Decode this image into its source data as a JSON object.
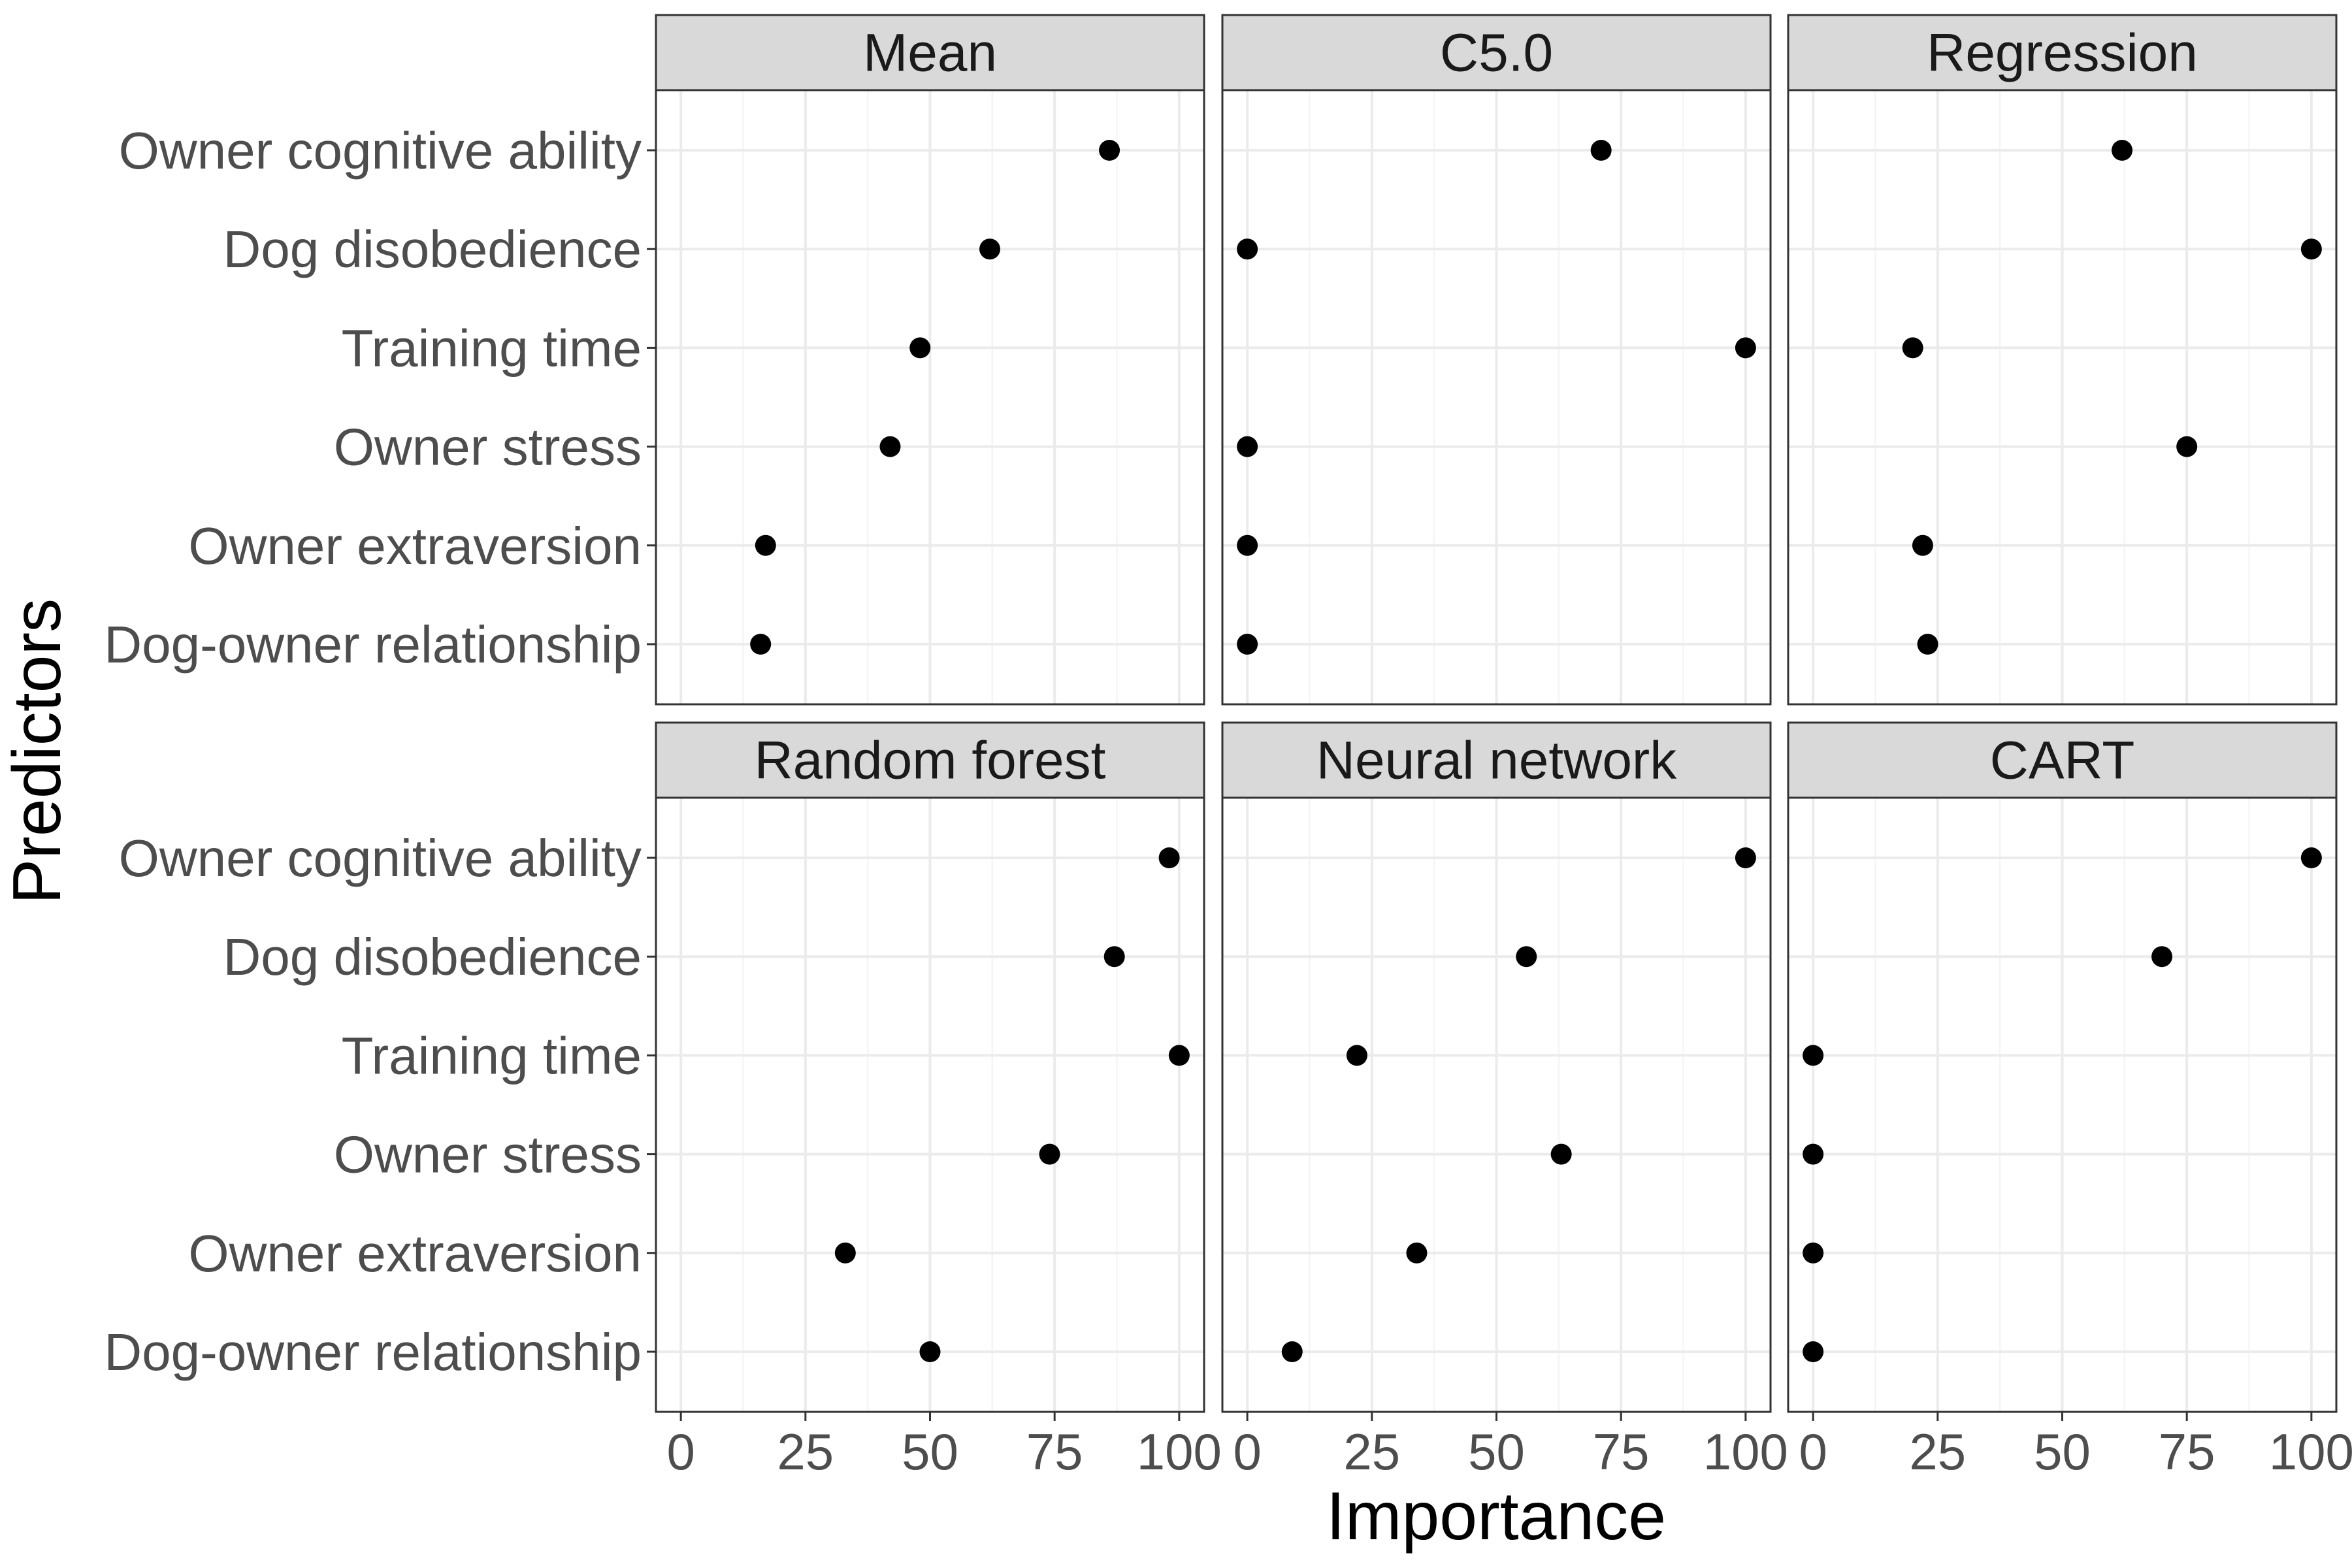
{
  "chart_data": {
    "type": "scatter",
    "xlabel": "Importance",
    "ylabel": "Predictors",
    "xlim": [
      -5,
      105
    ],
    "x_ticks": [
      0,
      25,
      50,
      75,
      100
    ],
    "x_tick_labels": [
      "0",
      "25",
      "50",
      "75",
      "100"
    ],
    "predictors": [
      "Owner cognitive ability",
      "Dog disobedience",
      "Training time",
      "Owner stress",
      "Owner extraversion",
      "Dog-owner relationship"
    ],
    "panels": [
      {
        "title": "Mean",
        "values": [
          86,
          62,
          48,
          42,
          17,
          16
        ]
      },
      {
        "title": "C5.0",
        "values": [
          71,
          0,
          100,
          0,
          0,
          0
        ]
      },
      {
        "title": "Regression",
        "values": [
          62,
          100,
          20,
          75,
          22,
          23
        ]
      },
      {
        "title": "Random forest",
        "values": [
          98,
          87,
          100,
          74,
          33,
          50
        ]
      },
      {
        "title": "Neural network",
        "values": [
          100,
          56,
          22,
          63,
          34,
          9
        ]
      },
      {
        "title": "CART",
        "values": [
          100,
          70,
          0,
          0,
          0,
          0
        ]
      }
    ],
    "colors": {
      "point": "#000000",
      "strip_fill": "#d9d9d9",
      "panel_border": "#333333",
      "grid_major": "#ebebeb",
      "grid_minor": "#f5f5f5",
      "label_text": "#4d4d4d"
    }
  }
}
